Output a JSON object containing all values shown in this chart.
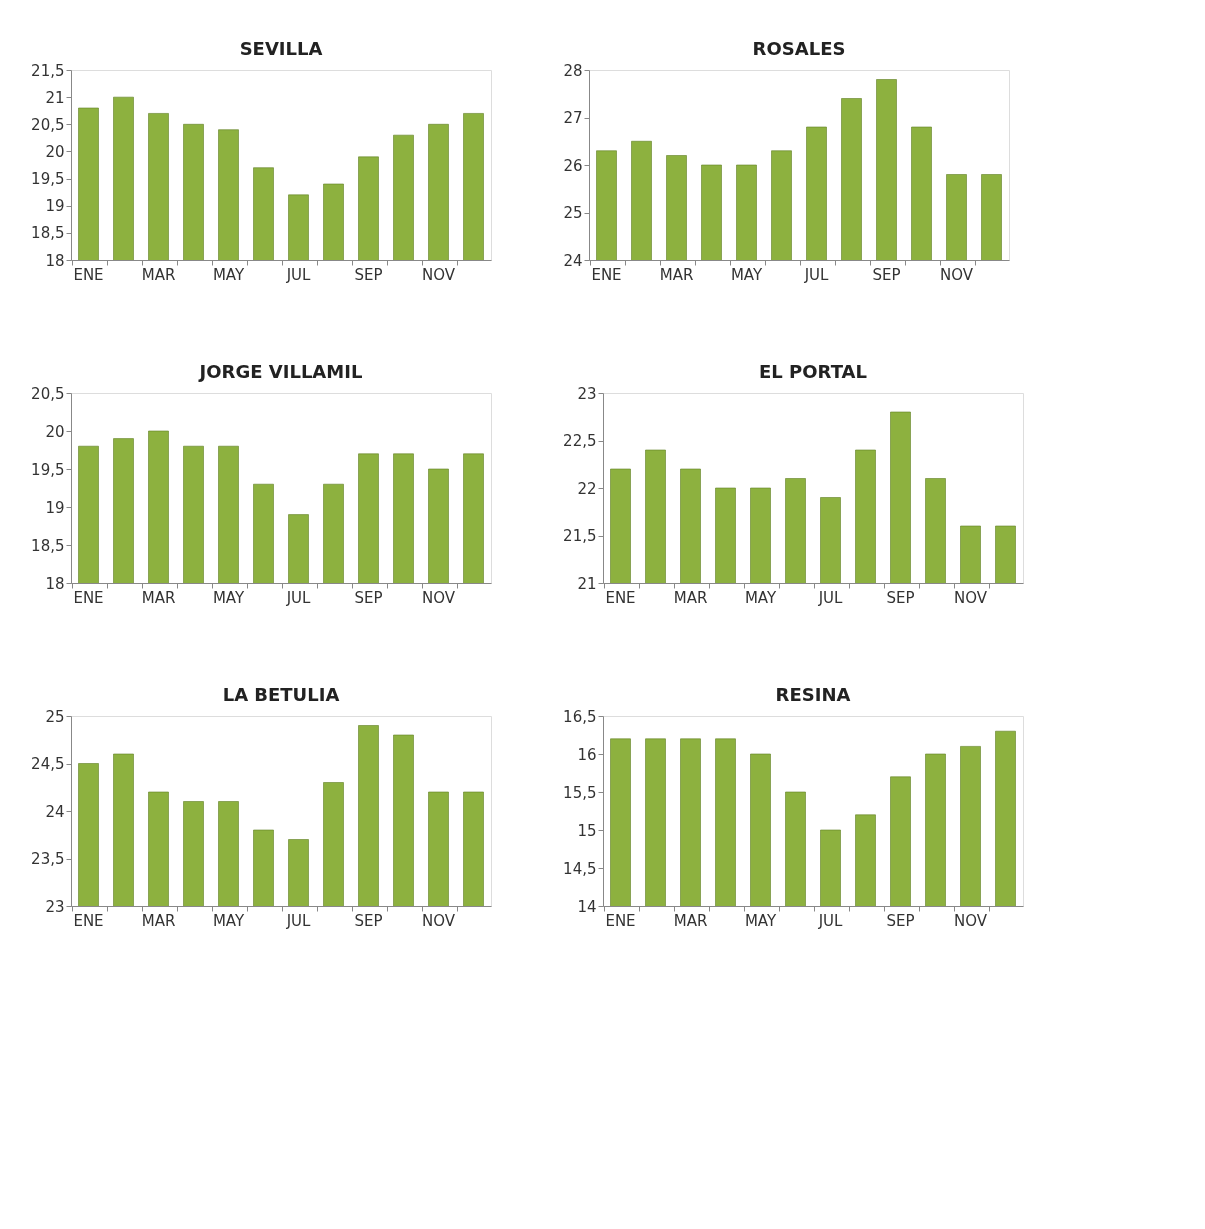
{
  "chart_data": [
    {
      "type": "bar",
      "title": "SEVILLA",
      "categories": [
        "ENE",
        null,
        "MAR",
        null,
        "MAY",
        null,
        "JUL",
        null,
        "SEP",
        null,
        "NOV",
        null
      ],
      "color": "#8db13f",
      "grid": false,
      "values": [
        20.8,
        21.0,
        20.7,
        20.5,
        20.4,
        19.7,
        19.2,
        19.4,
        19.9,
        20.3,
        20.5,
        20.7
      ],
      "ylim": [
        18,
        21.5
      ],
      "yticks": [
        18,
        {
          "value": 18.5,
          "label": "18,5"
        },
        19,
        {
          "value": 19.5,
          "label": "19,5"
        },
        20,
        {
          "value": 20.5,
          "label": "20,5"
        },
        21,
        {
          "value": 21.5,
          "label": "21,5"
        }
      ]
    },
    {
      "type": "bar",
      "title": "ROSALES",
      "categories": [
        "ENE",
        null,
        "MAR",
        null,
        "MAY",
        null,
        "JUL",
        null,
        "SEP",
        null,
        "NOV",
        null
      ],
      "color": "#8db13f",
      "grid": false,
      "values": [
        26.3,
        26.5,
        26.2,
        26.0,
        26.0,
        26.3,
        26.8,
        27.4,
        27.8,
        26.8,
        25.8,
        25.8
      ],
      "ylim": [
        24,
        28
      ],
      "yticks": [
        24,
        25,
        26,
        27,
        28
      ]
    },
    {
      "type": "bar",
      "title": "JORGE VILLAMIL",
      "categories": [
        "ENE",
        null,
        "MAR",
        null,
        "MAY",
        null,
        "JUL",
        null,
        "SEP",
        null,
        "NOV",
        null
      ],
      "color": "#8db13f",
      "grid": false,
      "values": [
        19.8,
        19.9,
        20.0,
        19.8,
        19.8,
        19.3,
        18.9,
        19.3,
        19.7,
        19.7,
        19.5,
        19.7
      ],
      "ylim": [
        18,
        20.5
      ],
      "yticks": [
        18,
        {
          "value": 18.5,
          "label": "18,5"
        },
        19,
        {
          "value": 19.5,
          "label": "19,5"
        },
        20,
        {
          "value": 20.5,
          "label": "20,5"
        }
      ]
    },
    {
      "type": "bar",
      "title": "EL PORTAL",
      "categories": [
        "ENE",
        null,
        "MAR",
        null,
        "MAY",
        null,
        "JUL",
        null,
        "SEP",
        null,
        "NOV",
        null
      ],
      "color": "#8db13f",
      "grid": false,
      "values": [
        22.2,
        22.4,
        22.2,
        22.0,
        22.0,
        22.1,
        21.9,
        22.4,
        22.8,
        22.1,
        21.6,
        21.6
      ],
      "ylim": [
        21,
        23
      ],
      "yticks": [
        21,
        {
          "value": 21.5,
          "label": "21,5"
        },
        22,
        {
          "value": 22.5,
          "label": "22,5"
        },
        23
      ]
    },
    {
      "type": "bar",
      "title": "LA BETULIA",
      "categories": [
        "ENE",
        null,
        "MAR",
        null,
        "MAY",
        null,
        "JUL",
        null,
        "SEP",
        null,
        "NOV",
        null
      ],
      "color": "#8db13f",
      "grid": false,
      "values": [
        24.5,
        24.6,
        24.2,
        24.1,
        24.1,
        23.8,
        23.7,
        24.3,
        24.9,
        24.8,
        24.2,
        24.2
      ],
      "ylim": [
        23,
        25
      ],
      "yticks": [
        23,
        {
          "value": 23.5,
          "label": "23,5"
        },
        24,
        {
          "value": 24.5,
          "label": "24,5"
        },
        25
      ]
    },
    {
      "type": "bar",
      "title": "RESINA",
      "categories": [
        "ENE",
        null,
        "MAR",
        null,
        "MAY",
        null,
        "JUL",
        null,
        "SEP",
        null,
        "NOV",
        null
      ],
      "color": "#8db13f",
      "grid": false,
      "values": [
        16.2,
        16.2,
        16.2,
        16.2,
        16.0,
        15.5,
        15.0,
        15.2,
        15.7,
        16.0,
        16.1,
        16.3
      ],
      "ylim": [
        14,
        16.5
      ],
      "yticks": [
        14,
        {
          "value": 14.5,
          "label": "14,5"
        },
        15,
        {
          "value": 15.5,
          "label": "15,5"
        },
        16,
        {
          "value": 16.5,
          "label": "16,5"
        }
      ]
    }
  ]
}
